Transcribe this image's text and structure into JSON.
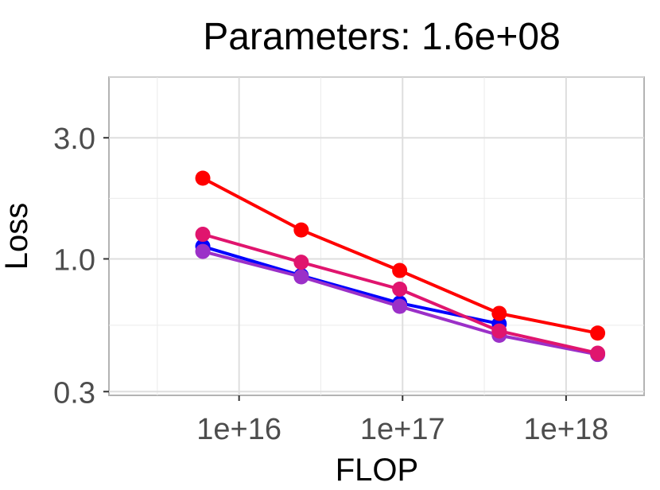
{
  "chart_data": {
    "type": "line",
    "title": "Parameters: 1.6e+08",
    "xlabel": "FLOP",
    "ylabel": "Loss",
    "x_scale": "log",
    "y_scale": "log",
    "xlim": [
      1600000000000000.0,
      3e+18
    ],
    "ylim": [
      0.29,
      5.2
    ],
    "x_ticks": [
      {
        "value": 1e+16,
        "label": "1e+16"
      },
      {
        "value": 1e+17,
        "label": "1e+17"
      },
      {
        "value": 1e+18,
        "label": "1e+18"
      }
    ],
    "y_ticks": [
      {
        "value": 0.3,
        "label": "0.3"
      },
      {
        "value": 1.0,
        "label": "1.0"
      },
      {
        "value": 3.0,
        "label": "3.0"
      }
    ],
    "grid": true,
    "legend": "none",
    "series": [
      {
        "color": "#0000ff",
        "x": [
          6000000000000000.0,
          2.4e+16,
          9.6e+16,
          3.9e+17
        ],
        "y": [
          1.12,
          0.86,
          0.67,
          0.555
        ]
      },
      {
        "color": "#9b30c8",
        "x": [
          6000000000000000.0,
          2.4e+16,
          9.6e+16,
          3.9e+17,
          1.56e+18
        ],
        "y": [
          1.07,
          0.85,
          0.65,
          0.5,
          0.42
        ]
      },
      {
        "color": "#e0156e",
        "x": [
          6000000000000000.0,
          2.4e+16,
          9.6e+16,
          3.9e+17,
          1.56e+18
        ],
        "y": [
          1.25,
          0.97,
          0.76,
          0.52,
          0.425
        ]
      },
      {
        "color": "#ff0000",
        "x": [
          6000000000000000.0,
          2.4e+16,
          9.6e+16,
          3.9e+17,
          1.56e+18
        ],
        "y": [
          2.08,
          1.3,
          0.9,
          0.61,
          0.51
        ]
      }
    ]
  }
}
